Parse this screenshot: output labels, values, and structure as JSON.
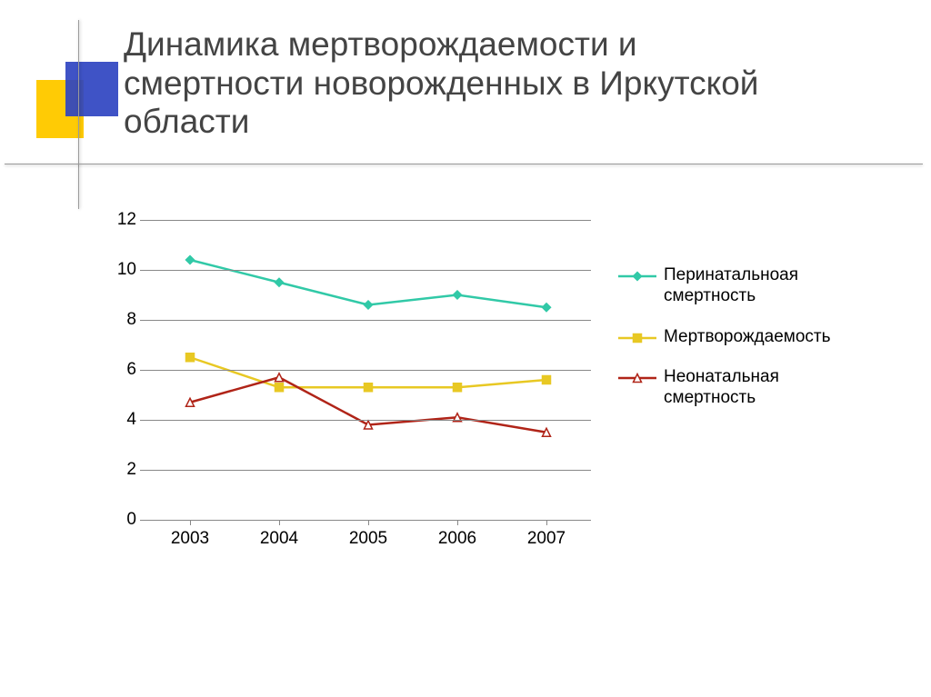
{
  "title": "Динамика мертворождаемости и смертности новорожденных в Иркутской области",
  "title_fontsize": 37,
  "title_color": "#444444",
  "decor": {
    "yellow": "#ffcb05",
    "blue": "#2f44c1"
  },
  "chart": {
    "type": "line",
    "background_color": "#ffffff",
    "grid_color": "#888888",
    "axis_color": "#888888",
    "tick_fontsize": 19,
    "tick_color": "#000000",
    "ylim": [
      0,
      12
    ],
    "ytick_step": 2,
    "yticks": [
      0,
      2,
      4,
      6,
      8,
      10,
      12
    ],
    "categories": [
      "2003",
      "2004",
      "2005",
      "2006",
      "2007"
    ],
    "line_width": 2.5,
    "marker_size": 9,
    "series": [
      {
        "name": "Перинатальноая смертность",
        "color": "#31c9a7",
        "marker": "diamond",
        "marker_fill": "#31c9a7",
        "values": [
          10.4,
          9.5,
          8.6,
          9.0,
          8.5
        ]
      },
      {
        "name": "Мертворождаемость",
        "color": "#e8c823",
        "marker": "square",
        "marker_fill": "#e8c823",
        "values": [
          6.5,
          5.3,
          5.3,
          5.3,
          5.6
        ]
      },
      {
        "name": "Неонатальная смертность",
        "color": "#b02418",
        "marker": "triangle",
        "marker_fill": "#ffffff",
        "values": [
          4.7,
          5.7,
          3.8,
          4.1,
          3.5
        ]
      }
    ],
    "legend": {
      "position": "right",
      "fontsize": 19,
      "label_color": "#000000"
    }
  }
}
